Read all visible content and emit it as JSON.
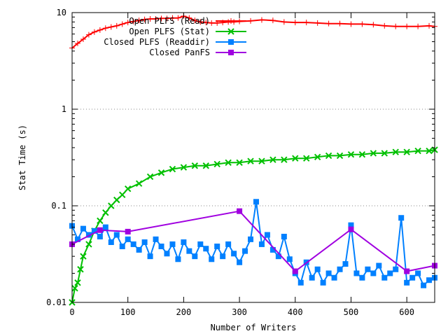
{
  "chart_data": {
    "type": "line",
    "xlabel": "Number of Writers",
    "ylabel": "Stat Time (s)",
    "xlim": [
      0,
      650
    ],
    "ylim": [
      0.01,
      10
    ],
    "yscale": "log",
    "grid": "horizontal-dotted",
    "legend_position": "top-right",
    "x_ticks": [
      {
        "value": 0,
        "label": "0"
      },
      {
        "value": 100,
        "label": "100"
      },
      {
        "value": 200,
        "label": "200"
      },
      {
        "value": 300,
        "label": "300"
      },
      {
        "value": 400,
        "label": "400"
      },
      {
        "value": 500,
        "label": "500"
      },
      {
        "value": 600,
        "label": "600"
      }
    ],
    "y_ticks": [
      {
        "value": 0.01,
        "label": "0.01"
      },
      {
        "value": 0.1,
        "label": "0.1"
      },
      {
        "value": 1,
        "label": "1"
      },
      {
        "value": 10,
        "label": "10"
      }
    ],
    "series": [
      {
        "name": "Open PLFS (Read)",
        "color": "#ff0000",
        "marker": "plus",
        "x": [
          0,
          10,
          20,
          30,
          40,
          50,
          60,
          70,
          80,
          90,
          100,
          110,
          120,
          130,
          140,
          150,
          160,
          170,
          180,
          190,
          200,
          210,
          220,
          230,
          240,
          250,
          260,
          270,
          280,
          290,
          300,
          320,
          340,
          360,
          380,
          400,
          420,
          440,
          460,
          480,
          500,
          520,
          540,
          560,
          580,
          600,
          620,
          640,
          650
        ],
        "y": [
          4.3,
          4.8,
          5.3,
          5.9,
          6.3,
          6.6,
          6.9,
          7.1,
          7.3,
          7.6,
          7.9,
          8.1,
          8.3,
          8.5,
          8.6,
          8.6,
          8.7,
          8.7,
          8.8,
          8.8,
          9.2,
          8.8,
          8.3,
          8.0,
          7.9,
          7.8,
          7.8,
          7.9,
          8.0,
          8.0,
          8.1,
          8.2,
          8.4,
          8.3,
          8.0,
          7.9,
          7.9,
          7.8,
          7.7,
          7.7,
          7.6,
          7.6,
          7.5,
          7.3,
          7.2,
          7.2,
          7.2,
          7.3,
          7.2
        ]
      },
      {
        "name": "Open PLFS (Stat)",
        "color": "#00c000",
        "marker": "x",
        "x": [
          0,
          5,
          10,
          15,
          20,
          30,
          40,
          50,
          60,
          70,
          80,
          90,
          100,
          120,
          140,
          160,
          180,
          200,
          220,
          240,
          260,
          280,
          300,
          320,
          340,
          360,
          380,
          400,
          420,
          440,
          460,
          480,
          500,
          520,
          540,
          560,
          580,
          600,
          620,
          640,
          650
        ],
        "y": [
          0.01,
          0.014,
          0.016,
          0.022,
          0.03,
          0.04,
          0.055,
          0.07,
          0.085,
          0.1,
          0.115,
          0.13,
          0.15,
          0.17,
          0.2,
          0.22,
          0.24,
          0.25,
          0.26,
          0.26,
          0.27,
          0.28,
          0.28,
          0.29,
          0.29,
          0.3,
          0.3,
          0.31,
          0.31,
          0.32,
          0.33,
          0.33,
          0.34,
          0.34,
          0.35,
          0.35,
          0.36,
          0.36,
          0.37,
          0.37,
          0.38
        ]
      },
      {
        "name": "Closed PLFS (Readdir)",
        "color": "#0080ff",
        "marker": "square",
        "x": [
          0,
          10,
          20,
          30,
          40,
          50,
          60,
          70,
          80,
          90,
          100,
          110,
          120,
          130,
          140,
          150,
          160,
          170,
          180,
          190,
          200,
          210,
          220,
          230,
          240,
          250,
          260,
          270,
          280,
          290,
          300,
          310,
          320,
          330,
          340,
          350,
          360,
          370,
          380,
          390,
          400,
          410,
          420,
          430,
          440,
          450,
          460,
          470,
          480,
          490,
          500,
          510,
          520,
          530,
          540,
          550,
          560,
          570,
          580,
          590,
          600,
          610,
          620,
          630,
          640,
          650
        ],
        "y": [
          0.062,
          0.045,
          0.058,
          0.05,
          0.055,
          0.048,
          0.06,
          0.042,
          0.05,
          0.038,
          0.045,
          0.04,
          0.035,
          0.042,
          0.03,
          0.045,
          0.038,
          0.032,
          0.04,
          0.028,
          0.042,
          0.034,
          0.03,
          0.04,
          0.036,
          0.028,
          0.038,
          0.03,
          0.04,
          0.032,
          0.026,
          0.034,
          0.045,
          0.11,
          0.04,
          0.05,
          0.035,
          0.03,
          0.048,
          0.028,
          0.02,
          0.016,
          0.026,
          0.018,
          0.022,
          0.016,
          0.02,
          0.018,
          0.022,
          0.025,
          0.063,
          0.02,
          0.018,
          0.022,
          0.02,
          0.024,
          0.018,
          0.02,
          0.022,
          0.075,
          0.016,
          0.018,
          0.02,
          0.015,
          0.017,
          0.018
        ]
      },
      {
        "name": "Closed PanFS",
        "color": "#a000e0",
        "marker": "filled-square",
        "x": [
          0,
          50,
          100,
          300,
          400,
          500,
          600,
          650
        ],
        "y": [
          0.04,
          0.056,
          0.054,
          0.088,
          0.021,
          0.057,
          0.021,
          0.024
        ]
      }
    ]
  }
}
